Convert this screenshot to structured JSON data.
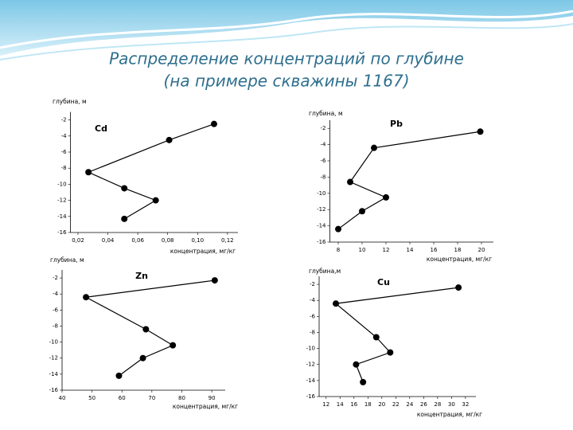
{
  "title": "Распределение концентраций по глубине",
  "subtitle": "(на примере скважины 1167)",
  "chart_data": [
    {
      "type": "line",
      "x": [
        0.111,
        0.081,
        0.027,
        0.051,
        0.072,
        0.051
      ],
      "series": [
        {
          "name": "Cd",
          "color": "#000000",
          "values": [
            -2.5,
            -4.5,
            -8.5,
            -10.5,
            -12,
            -14.3
          ]
        }
      ],
      "xlabel": "концентрация, мг/кг",
      "ylabel": "глубина, м",
      "xlim": [
        0.015,
        0.127
      ],
      "ylim": [
        -16,
        -1
      ],
      "xticks": [
        {
          "value": 0.02,
          "label": "0,02"
        },
        {
          "value": 0.04,
          "label": "0,04"
        },
        {
          "value": 0.06,
          "label": "0,06"
        },
        {
          "value": 0.08,
          "label": "0,08"
        },
        {
          "value": 0.1,
          "label": "0,10"
        },
        {
          "value": 0.12,
          "label": "0,12"
        }
      ],
      "yticks": [
        -2,
        -4,
        -6,
        -8,
        -10,
        -12,
        -14,
        -16
      ]
    },
    {
      "type": "line",
      "x": [
        19.9,
        11,
        9,
        12,
        10,
        8
      ],
      "series": [
        {
          "name": "Pb",
          "color": "#000000",
          "values": [
            -2.4,
            -4.4,
            -8.6,
            -10.5,
            -12.2,
            -14.4
          ]
        }
      ],
      "xlabel": "концентрация, мг/кг",
      "ylabel": "глубина, м",
      "xlim": [
        7.3,
        21
      ],
      "ylim": [
        -16,
        -1
      ],
      "xticks": [
        8,
        10,
        12,
        14,
        16,
        18,
        20
      ],
      "yticks": [
        -2,
        -4,
        -6,
        -8,
        -10,
        -12,
        -14,
        -16
      ]
    },
    {
      "type": "line",
      "x": [
        91,
        48,
        68,
        77,
        67,
        59
      ],
      "series": [
        {
          "name": "Zn",
          "color": "#000000",
          "values": [
            -2.3,
            -4.4,
            -8.4,
            -10.4,
            -12,
            -14.2
          ]
        }
      ],
      "xlabel": "концентрация, мг/кг",
      "ylabel": "глубина, м",
      "xlim": [
        40,
        94.5
      ],
      "ylim": [
        -16,
        -1
      ],
      "xticks": [
        40,
        50,
        60,
        70,
        80,
        90
      ],
      "yticks": [
        -2,
        -4,
        -6,
        -8,
        -10,
        -12,
        -14,
        -16
      ]
    },
    {
      "type": "line",
      "x": [
        31,
        13.4,
        19.2,
        21.2,
        16.3,
        17.3
      ],
      "series": [
        {
          "name": "Cu",
          "color": "#000000",
          "values": [
            -2.4,
            -4.4,
            -8.6,
            -10.5,
            -12,
            -14.2
          ]
        }
      ],
      "xlabel": "концентрация, мг/кг",
      "ylabel": "глубина,м",
      "xlim": [
        11,
        33.5
      ],
      "ylim": [
        -16,
        -1
      ],
      "xticks": [
        12,
        14,
        16,
        18,
        20,
        22,
        24,
        26,
        28,
        30,
        32
      ],
      "yticks": [
        -2,
        -4,
        -6,
        -8,
        -10,
        -12,
        -14,
        -16
      ]
    }
  ]
}
